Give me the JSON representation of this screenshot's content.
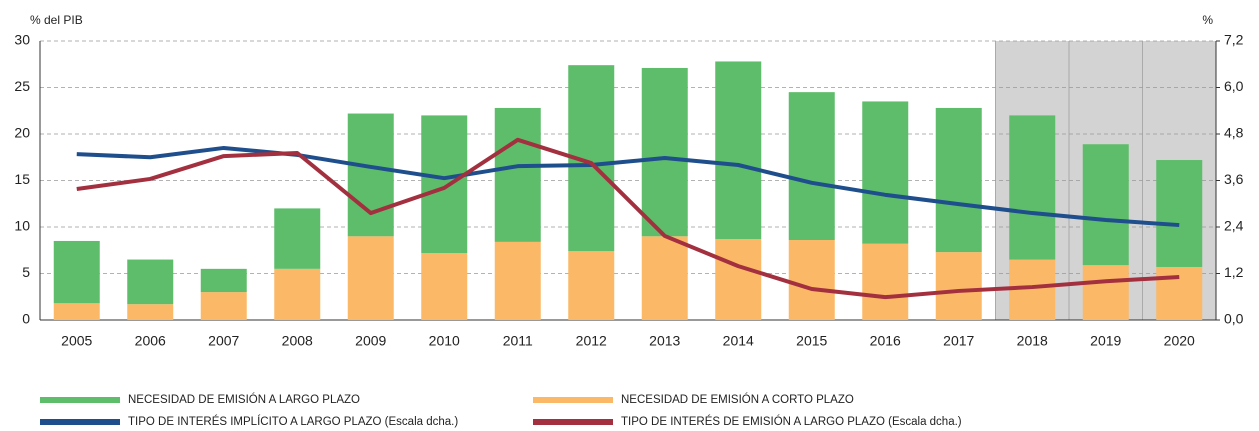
{
  "chart_data": {
    "type": "bar",
    "y_label": "% del PIB",
    "y2_label": "%",
    "categories": [
      "2005",
      "2006",
      "2007",
      "2008",
      "2009",
      "2010",
      "2011",
      "2012",
      "2013",
      "2014",
      "2015",
      "2016",
      "2017",
      "2018",
      "2019",
      "2020"
    ],
    "series": [
      {
        "name": "NECESIDAD DE EMISIÓN A CORTO PLAZO",
        "color": "#fbb867",
        "type": "bar",
        "values": [
          1.8,
          1.7,
          3.0,
          5.5,
          9.0,
          7.2,
          8.4,
          7.4,
          9.0,
          8.7,
          8.6,
          8.2,
          7.3,
          6.5,
          5.9,
          5.7
        ]
      },
      {
        "name": "NECESIDAD DE EMISIÓN A LARGO PLAZO",
        "color": "#5ebd6a",
        "type": "bar",
        "values": [
          6.7,
          4.8,
          2.5,
          6.5,
          13.2,
          14.8,
          14.4,
          20.0,
          18.1,
          19.1,
          15.9,
          15.3,
          15.5,
          15.5,
          13.0,
          11.5
        ]
      },
      {
        "name": "TIPO DE INTERÉS IMPLÍCITO A LARGO PLAZO (Escala dcha.)",
        "color": "#1f4e8c",
        "type": "line",
        "axis": "y2",
        "values": [
          4.28,
          4.2,
          4.44,
          4.26,
          3.95,
          3.66,
          3.97,
          4.0,
          4.18,
          4.0,
          3.54,
          3.23,
          2.99,
          2.76,
          2.58,
          2.45
        ]
      },
      {
        "name": "TIPO DE INTERÉS DE EMISIÓN A LARGO PLAZO (Escala dcha.)",
        "color": "#a3303f",
        "type": "line",
        "axis": "y2",
        "values": [
          3.38,
          3.64,
          4.23,
          4.31,
          2.76,
          3.41,
          4.65,
          4.05,
          2.17,
          1.39,
          0.8,
          0.59,
          0.75,
          0.85,
          1.0,
          1.11
        ]
      }
    ],
    "ylim": [
      0,
      30
    ],
    "yticks": [
      0,
      5,
      10,
      15,
      20,
      25,
      30
    ],
    "y2lim": [
      0,
      7.2
    ],
    "y2ticks": [
      {
        "value": 0,
        "label": "0,0"
      },
      {
        "value": 1.2,
        "label": "1,2"
      },
      {
        "value": 2.4,
        "label": "2,4"
      },
      {
        "value": 3.6,
        "label": "3,6"
      },
      {
        "value": 4.8,
        "label": "4,8"
      },
      {
        "value": 6,
        "label": "6,0"
      },
      {
        "value": 7.2,
        "label": "7,2"
      }
    ],
    "grid": true
  }
}
